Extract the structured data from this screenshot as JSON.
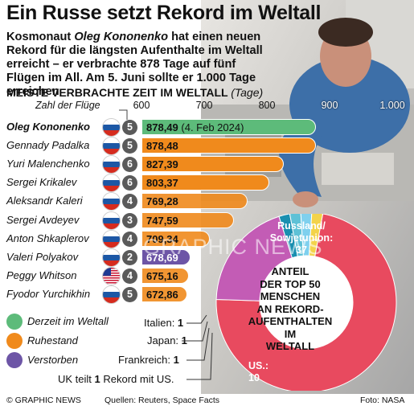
{
  "header": {
    "headline": "Ein Russe setzt Rekord im Weltall",
    "intro_part1": "Kosmonaut ",
    "intro_name": "Oleg Kononenko",
    "intro_part2": " hat einen neuen Rekord für die längsten Aufenthalte  im Weltall erreicht – er verbrachte 878 Tage auf fünf Flügen im All. Am 5. Juni sollte er 1.000 Tage erreichen"
  },
  "chart_data": [
    {
      "type": "bar",
      "title": "MEISTE VERBRACHTE ZEIT IM WELTALL",
      "unit": "(Tage)",
      "secondary_column_label": "Zahl der Flüge",
      "x_ticks": [
        "600",
        "700",
        "800",
        "900",
        "1.000"
      ],
      "xlim": [
        600,
        1000
      ],
      "categories": [
        "Oleg Kononenko",
        "Gennady Padalka",
        "Yuri Malenchenko",
        "Sergei Krikalev",
        "Aleksandr Kaleri",
        "Sergei Avdeyev",
        "Anton Shkaplerov",
        "Valeri Polyakov",
        "Peggy Whitson",
        "Fyodor Yurchikhin"
      ],
      "values": [
        878.49,
        878.48,
        827.39,
        803.37,
        769.28,
        747.59,
        709.34,
        678.69,
        675.16,
        672.86
      ],
      "value_labels": [
        "878,49",
        "878,48",
        "827,39",
        "803,37",
        "769,28",
        "747,59",
        "709,34",
        "678,69",
        "675,16",
        "672,86"
      ],
      "first_value_note": "(4. Feb 2024)",
      "flights": [
        "5",
        "5",
        "6",
        "6",
        "4",
        "3",
        "4",
        "2",
        "4",
        "5"
      ],
      "countries": [
        "ru",
        "ru",
        "ru",
        "ru",
        "ru",
        "ru",
        "ru",
        "ru",
        "us",
        "ru"
      ],
      "status": [
        "active",
        "retired",
        "retired",
        "retired",
        "retired",
        "retired",
        "retired",
        "deceased",
        "retired",
        "retired"
      ],
      "status_colors": {
        "active": "#5dbb7a",
        "retired": "#f08a1c",
        "deceased": "#6d55a6"
      }
    },
    {
      "type": "pie",
      "title": "ANTEIL DER TOP 50 MENSCHEN AN REKORD-AUFENTHALTEN IM WELTALL",
      "categories": [
        "Russland/ Sowjetunion",
        "US.",
        "UK teilt 1 Rekord mit US.",
        "Frankreich",
        "Japan",
        "Italien"
      ],
      "values": [
        37,
        10,
        1,
        1,
        1,
        1
      ],
      "colors": [
        "#e84a5f",
        "#c35cb5",
        "#1a8fb0",
        "#5ec1d6",
        "#7fd0ee",
        "#f3d34a"
      ]
    }
  ],
  "legend": {
    "items": [
      {
        "label": "Derzeit im Weltall",
        "color": "#5dbb7a"
      },
      {
        "label": "Ruhestand",
        "color": "#f08a1c"
      },
      {
        "label": "Verstorben",
        "color": "#6d55a6"
      }
    ]
  },
  "donut_labels": {
    "russia_line1": "Russland/",
    "russia_line2": "Sowjetunion: 37",
    "us_line1": "US.:",
    "us_line2": "10",
    "italy_name": "Italien: ",
    "italy_count": "1",
    "japan_name": "Japan: ",
    "japan_count": "1",
    "france_name": "Frankreich: ",
    "france_count": "1",
    "uk_part1": "UK teilt ",
    "uk_count": "1",
    "uk_part2": " Rekord mit US."
  },
  "donut_title_lines": [
    "ANTEIL",
    "DER TOP 50",
    "MENSCHEN",
    "AN REKORD-",
    "AUFENTHALTEN",
    "IM",
    "WELTALL"
  ],
  "footer": {
    "copyright": "© GRAPHIC NEWS",
    "sources": "Quellen: Reuters, Space Facts",
    "photo": "Foto: NASA"
  },
  "watermark": "GRAPHIC NEWS"
}
